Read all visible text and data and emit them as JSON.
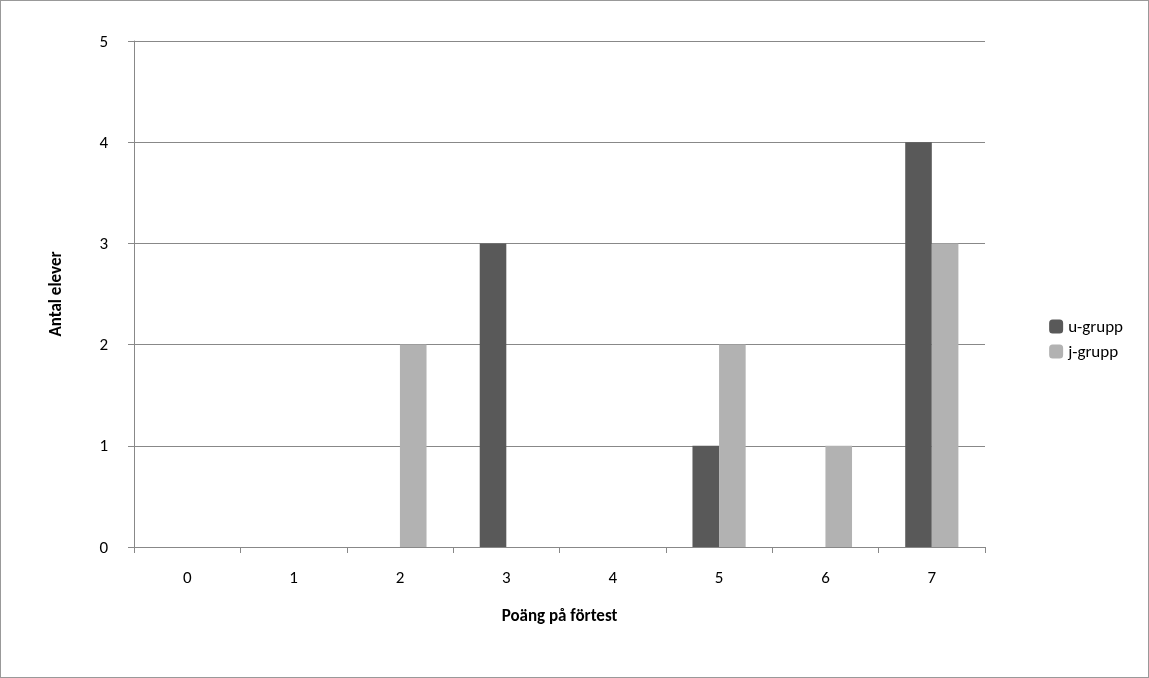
{
  "chart_data": {
    "type": "bar",
    "xlabel": "Poäng på förtest",
    "ylabel": "Antal elever",
    "categories": [
      "0",
      "1",
      "2",
      "3",
      "4",
      "5",
      "6",
      "7"
    ],
    "series": [
      {
        "name": "u-grupp",
        "color": "#595959",
        "values": [
          0,
          0,
          0,
          3,
          0,
          1,
          0,
          4
        ]
      },
      {
        "name": "j-grupp",
        "color": "#b2b2b2",
        "values": [
          0,
          0,
          2,
          0,
          0,
          2,
          1,
          3
        ]
      }
    ],
    "ylim": [
      0,
      5
    ],
    "yticks": [
      0,
      1,
      2,
      3,
      4,
      5
    ],
    "grid": "y",
    "legend": "right"
  }
}
